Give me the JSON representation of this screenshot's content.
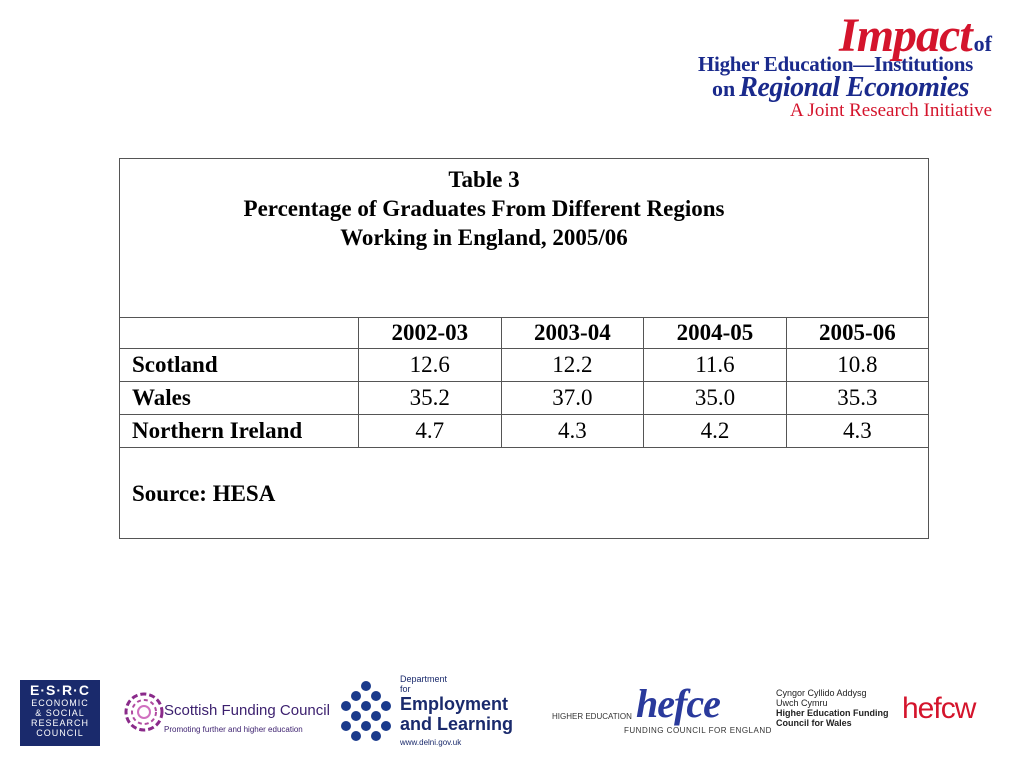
{
  "header": {
    "impact_title": "Impact",
    "impact_of": "of",
    "line2": "Higher Education—Institutions",
    "line3_on": "on",
    "line3_rest": "Regional Economies",
    "tagline": "A Joint Research Initiative",
    "brand_red": "#d4142c",
    "brand_blue": "#1a2a8c"
  },
  "table": {
    "title_lines": [
      "Table 3",
      "Percentage of Graduates From Different Regions",
      "Working in England, 2005/06"
    ],
    "columns": [
      "2002-03",
      "2003-04",
      "2004-05",
      "2005-06"
    ],
    "rows": [
      {
        "label": "Scotland",
        "values": [
          "12.6",
          "12.2",
          "11.6",
          "10.8"
        ]
      },
      {
        "label": "Wales",
        "values": [
          "35.2",
          "37.0",
          "35.0",
          "35.3"
        ]
      },
      {
        "label": "Northern Ireland",
        "values": [
          "4.7",
          "4.3",
          "4.2",
          "4.3"
        ]
      }
    ],
    "source": "Source: HESA"
  },
  "footer": {
    "esrc": {
      "abbr": "E·S·R·C",
      "lines": [
        "ECONOMIC",
        "& SOCIAL",
        "RESEARCH",
        "COUNCIL"
      ]
    },
    "sfc": {
      "name": "Scottish Funding Council",
      "tagline": "Promoting further and higher education"
    },
    "del": {
      "dept": "Department for",
      "line1": "Employment",
      "line2": "and Learning",
      "url": "www.delni.gov.uk"
    },
    "hefce": {
      "word": "hefce",
      "left_text": "HIGHER EDUCATION",
      "bottom_text": "FUNDING COUNCIL    FOR ENGLAND"
    },
    "hefcw": {
      "lines": [
        "Cyngor Cyllido Addysg",
        "Uwch Cymru",
        "Higher Education Funding",
        "Council for Wales"
      ],
      "word": "hefcw"
    }
  }
}
